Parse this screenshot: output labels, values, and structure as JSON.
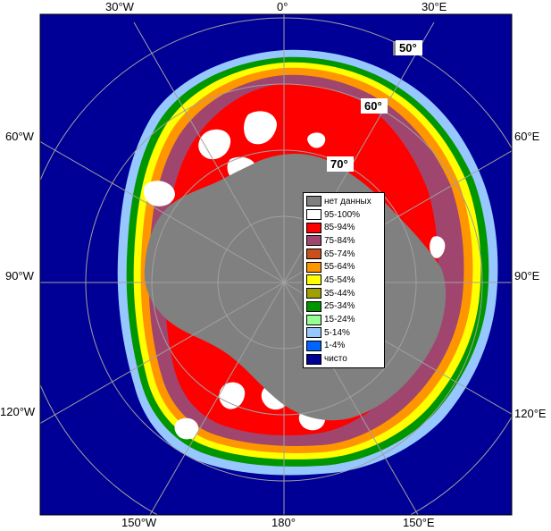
{
  "map": {
    "legend": [
      {
        "label": "нет данных",
        "color": "#808080"
      },
      {
        "label": "95-100%",
        "color": "#ffffff"
      },
      {
        "label": "85-94%",
        "color": "#ff0000"
      },
      {
        "label": "75-84%",
        "color": "#a0466e"
      },
      {
        "label": "65-74%",
        "color": "#c8501e"
      },
      {
        "label": "55-64%",
        "color": "#ff9600"
      },
      {
        "label": "45-54%",
        "color": "#ffff00"
      },
      {
        "label": "35-44%",
        "color": "#a0a000"
      },
      {
        "label": "25-34%",
        "color": "#009600"
      },
      {
        "label": "15-24%",
        "color": "#96ff96"
      },
      {
        "label": "5-14%",
        "color": "#96c8ff"
      },
      {
        "label": "1-4%",
        "color": "#0064ff"
      },
      {
        "label": "чисто",
        "color": "#000096"
      }
    ],
    "lon_labels": {
      "w30": "30°W",
      "zero": "0°",
      "e30": "30°E",
      "w60": "60°W",
      "e60": "60°E",
      "w90": "90°W",
      "e90": "90°E",
      "w120": "120°W",
      "e120": "120°E",
      "w150": "150°W",
      "e180": "180°",
      "e150": "150°E"
    },
    "lat_labels": {
      "l50": "50°",
      "l60": "60°",
      "l70": "70°"
    }
  }
}
